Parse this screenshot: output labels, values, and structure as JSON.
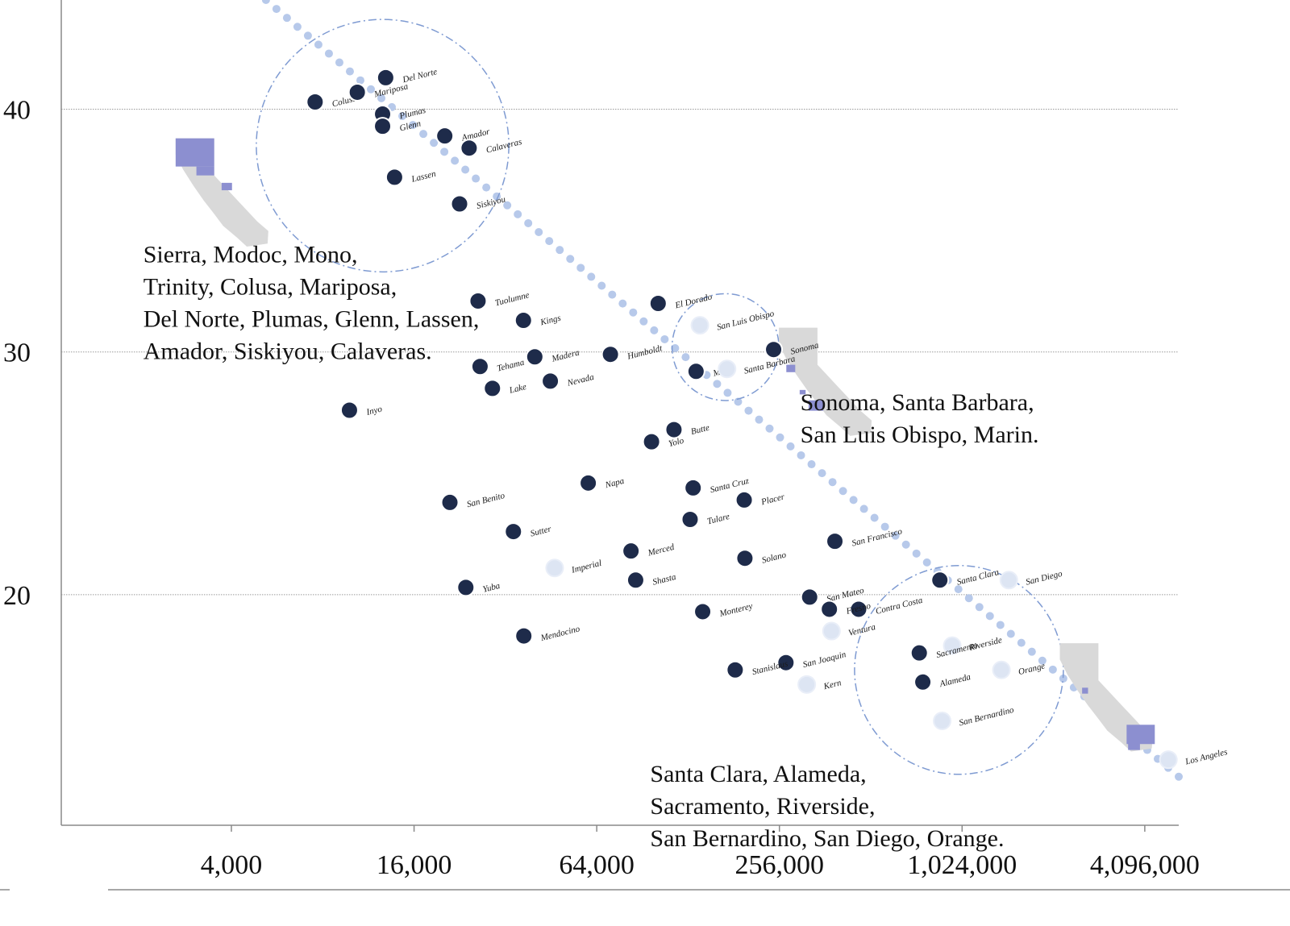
{
  "chart_data": {
    "type": "scatter",
    "x_scale": "log2",
    "xlim": [
      1100,
      5300000
    ],
    "ylim": [
      10.5,
      44.5
    ],
    "x_ticks": [
      4000,
      16000,
      64000,
      256000,
      1024000,
      4096000
    ],
    "x_tick_labels": [
      "4,000",
      "16,000",
      "64,000",
      "256,000",
      "1,024,000",
      "4,096,000"
    ],
    "y_ticks": [
      20,
      30,
      40
    ],
    "y_tick_labels": [
      "20",
      "30",
      "40"
    ],
    "grid": "horizontal",
    "colors": {
      "dark": "#1e2b4a",
      "light": "#dde5f3",
      "trend": "#b7c9ea",
      "circle": "#7f9bd2",
      "map_gray": "#d9d9d9",
      "map_highlight": "#8c8fd0"
    },
    "points": [
      {
        "name": "Colusa",
        "x": 7550,
        "y": 40.3,
        "style": "dark"
      },
      {
        "name": "Mariposa",
        "x": 10400,
        "y": 40.7,
        "style": "dark"
      },
      {
        "name": "Del Norte",
        "x": 12900,
        "y": 41.3,
        "style": "dark"
      },
      {
        "name": "Plumas",
        "x": 12600,
        "y": 39.8,
        "style": "dark"
      },
      {
        "name": "Glenn",
        "x": 12600,
        "y": 39.3,
        "style": "dark"
      },
      {
        "name": "Amador",
        "x": 20200,
        "y": 38.9,
        "style": "dark"
      },
      {
        "name": "Calaveras",
        "x": 24300,
        "y": 38.4,
        "style": "dark"
      },
      {
        "name": "Lassen",
        "x": 13800,
        "y": 37.2,
        "style": "dark"
      },
      {
        "name": "Siskiyou",
        "x": 22600,
        "y": 36.1,
        "style": "dark"
      },
      {
        "name": "Tuolumne",
        "x": 26000,
        "y": 32.1,
        "style": "dark"
      },
      {
        "name": "Kings",
        "x": 36700,
        "y": 31.3,
        "style": "dark"
      },
      {
        "name": "El Dorado",
        "x": 102000,
        "y": 32.0,
        "style": "dark"
      },
      {
        "name": "San Luis Obispo",
        "x": 140000,
        "y": 31.1,
        "style": "light"
      },
      {
        "name": "Sonoma",
        "x": 245000,
        "y": 30.1,
        "style": "dark"
      },
      {
        "name": "Madera",
        "x": 40000,
        "y": 29.8,
        "style": "dark"
      },
      {
        "name": "Humboldt",
        "x": 71000,
        "y": 29.9,
        "style": "dark"
      },
      {
        "name": "Marin",
        "x": 136000,
        "y": 29.2,
        "style": "dark"
      },
      {
        "name": "Santa Barbara",
        "x": 172000,
        "y": 29.3,
        "style": "light"
      },
      {
        "name": "Tehama",
        "x": 26400,
        "y": 29.4,
        "style": "dark"
      },
      {
        "name": "Nevada",
        "x": 45000,
        "y": 28.8,
        "style": "dark"
      },
      {
        "name": "Lake",
        "x": 29000,
        "y": 28.5,
        "style": "dark"
      },
      {
        "name": "Inyo",
        "x": 9800,
        "y": 27.6,
        "style": "dark"
      },
      {
        "name": "Butte",
        "x": 115000,
        "y": 26.8,
        "style": "dark"
      },
      {
        "name": "Yolo",
        "x": 97000,
        "y": 26.3,
        "style": "dark"
      },
      {
        "name": "Napa",
        "x": 60000,
        "y": 24.6,
        "style": "dark"
      },
      {
        "name": "Santa Cruz",
        "x": 133000,
        "y": 24.4,
        "style": "dark"
      },
      {
        "name": "Placer",
        "x": 196000,
        "y": 23.9,
        "style": "dark"
      },
      {
        "name": "San Benito",
        "x": 21000,
        "y": 23.8,
        "style": "dark"
      },
      {
        "name": "Tulare",
        "x": 130000,
        "y": 23.1,
        "style": "dark"
      },
      {
        "name": "Sutter",
        "x": 34000,
        "y": 22.6,
        "style": "dark"
      },
      {
        "name": "San Francisco",
        "x": 390000,
        "y": 22.2,
        "style": "dark"
      },
      {
        "name": "Imperial",
        "x": 46500,
        "y": 21.1,
        "style": "light"
      },
      {
        "name": "Merced",
        "x": 83000,
        "y": 21.8,
        "style": "dark"
      },
      {
        "name": "Solano",
        "x": 197000,
        "y": 21.5,
        "style": "dark"
      },
      {
        "name": "Yuba",
        "x": 23700,
        "y": 20.3,
        "style": "dark"
      },
      {
        "name": "Shasta",
        "x": 86000,
        "y": 20.6,
        "style": "dark"
      },
      {
        "name": "Santa Clara",
        "x": 865000,
        "y": 20.6,
        "style": "dark"
      },
      {
        "name": "San Diego",
        "x": 1460000,
        "y": 20.6,
        "style": "light"
      },
      {
        "name": "San Mateo",
        "x": 322000,
        "y": 19.9,
        "style": "dark"
      },
      {
        "name": "Contra Costa",
        "x": 467000,
        "y": 19.4,
        "style": "dark"
      },
      {
        "name": "Fresno",
        "x": 374000,
        "y": 19.4,
        "style": "dark"
      },
      {
        "name": "Monterey",
        "x": 143000,
        "y": 19.3,
        "style": "dark"
      },
      {
        "name": "Mendocino",
        "x": 36800,
        "y": 18.3,
        "style": "dark"
      },
      {
        "name": "Ventura",
        "x": 380000,
        "y": 18.5,
        "style": "light"
      },
      {
        "name": "Riverside",
        "x": 950000,
        "y": 17.9,
        "style": "light"
      },
      {
        "name": "Sacramento",
        "x": 740000,
        "y": 17.6,
        "style": "dark"
      },
      {
        "name": "Orange",
        "x": 1380000,
        "y": 16.9,
        "style": "light"
      },
      {
        "name": "San Joaquin",
        "x": 269000,
        "y": 17.2,
        "style": "dark"
      },
      {
        "name": "Stanislaus",
        "x": 183000,
        "y": 16.9,
        "style": "dark"
      },
      {
        "name": "Alameda",
        "x": 760000,
        "y": 16.4,
        "style": "dark"
      },
      {
        "name": "Kern",
        "x": 315000,
        "y": 16.3,
        "style": "light"
      },
      {
        "name": "San Bernardino",
        "x": 880000,
        "y": 14.8,
        "style": "light"
      },
      {
        "name": "Los Angeles",
        "x": 4900000,
        "y": 13.2,
        "style": "light"
      }
    ],
    "trend_line": [
      [
        5200,
        44.5
      ],
      [
        5300000,
        12.5
      ]
    ],
    "highlight_circles": [
      {
        "center": [
          12600,
          38.5
        ],
        "radius_y": 5.2
      },
      {
        "center": [
          170000,
          30.2
        ],
        "radius_y": 2.2
      },
      {
        "center": [
          1000000,
          16.9
        ],
        "radius_y": 4.3
      }
    ],
    "annotations": [
      {
        "lines": [
          "Sierra, Modoc, Mono,",
          "Trinity, Colusa, Mariposa,",
          "Del Norte, Plumas, Glenn, Lassen,",
          "Amador, Siskiyou, Calaveras."
        ],
        "anchor": [
          2050,
          33.7
        ]
      },
      {
        "lines": [
          "Sonoma, Santa Barbara,",
          "San Luis Obispo, Marin."
        ],
        "anchor": [
          300000,
          27.6
        ]
      },
      {
        "lines": [
          "Santa Clara, Alameda,",
          "Sacramento, Riverside,",
          "San Bernardino, San Diego, Orange."
        ],
        "anchor": [
          96000,
          12.3
        ]
      }
    ],
    "inset_maps": [
      {
        "name": "california-map-small-counties",
        "anchor": [
          2620,
          38.8
        ]
      },
      {
        "name": "california-map-mid-counties",
        "anchor": [
          255000,
          31.0
        ]
      },
      {
        "name": "california-map-large-counties",
        "anchor": [
          2150000,
          18.0
        ]
      }
    ]
  }
}
